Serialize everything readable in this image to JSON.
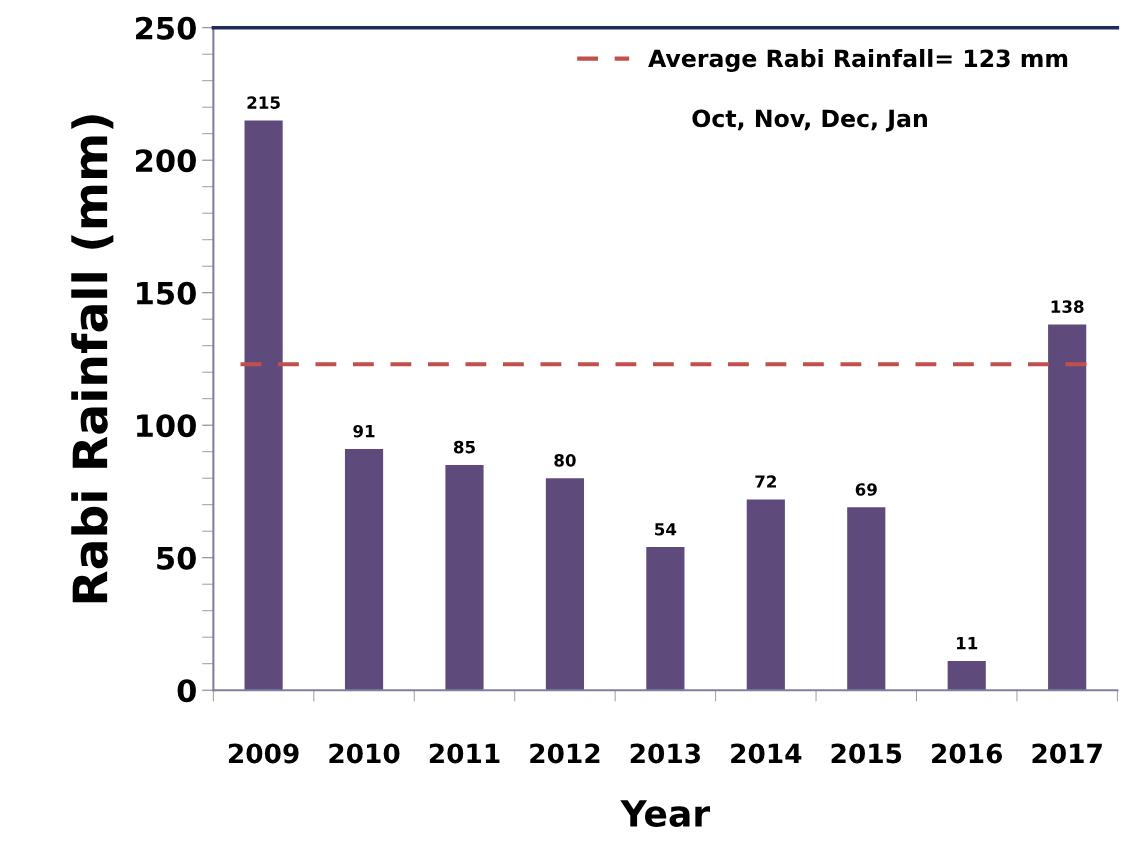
{
  "chart_data": {
    "type": "bar",
    "xlabel": "Year",
    "ylabel": "Rabi Rainfall (mm)",
    "categories": [
      "2009",
      "2010",
      "2011",
      "2012",
      "2013",
      "2014",
      "2015",
      "2016",
      "2017"
    ],
    "values": [
      215,
      91,
      85,
      80,
      54,
      72,
      69,
      11,
      138
    ],
    "color": "#5f4b7b",
    "data_labels": true,
    "ylim": [
      0,
      250
    ],
    "yticks": [
      0,
      50,
      100,
      150,
      200,
      250
    ],
    "grid": false,
    "ref_lines": [
      {
        "axis": "y",
        "value": 123,
        "label": "Average Rabi Rainfall= 123 mm",
        "color": "#c0504d",
        "line_style": "dashed"
      }
    ],
    "legend": "top right",
    "annotations": [
      "Oct, Nov, Dec, Jan"
    ]
  }
}
